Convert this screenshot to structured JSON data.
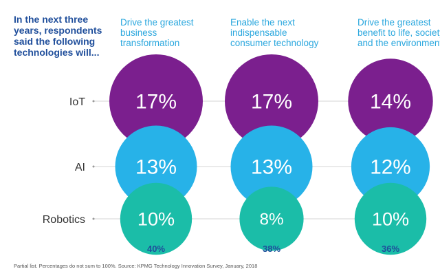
{
  "intro": "In the next three years, respondents said the following technologies will...",
  "chart_data": {
    "type": "bubble",
    "title": "In the next three years, respondents said the following technologies will...",
    "columns": [
      "Drive the greatest business transformation",
      "Enable the next indispensable consumer technology",
      "Drive the greatest benefit to life, society, and the environment"
    ],
    "rows": [
      "IoT",
      "AI",
      "Robotics"
    ],
    "series": [
      {
        "name": "IoT",
        "values": [
          17,
          17,
          14
        ],
        "value_labels": [
          "17%",
          "17%",
          "14%"
        ]
      },
      {
        "name": "AI",
        "values": [
          13,
          13,
          12
        ],
        "value_labels": [
          "13%",
          "13%",
          "12%"
        ]
      },
      {
        "name": "Robotics",
        "values": [
          10,
          8,
          10
        ],
        "value_labels": [
          "10%",
          "8%",
          "10%"
        ]
      }
    ],
    "totals": [
      "40%",
      "38%",
      "36%"
    ],
    "unit": "%"
  },
  "footnote": "Partial list. Percentages do not sum to 100%. Source: KPMG Technology Innovation Survey, January, 2018",
  "colors": {
    "IoT": "#7b1f8e",
    "AI": "#27b2e8",
    "Robotics": "#1bbda8",
    "title": "#1f4e9b",
    "header": "#2aa7de",
    "guide": "#d4d4d4"
  }
}
